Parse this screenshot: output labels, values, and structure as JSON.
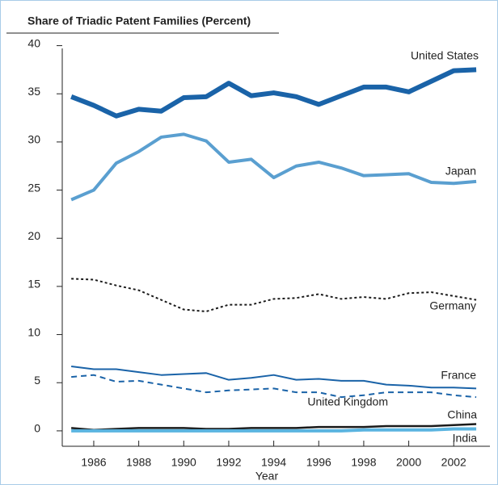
{
  "chart_data": {
    "type": "line",
    "title": "Share of Triadic Patent Families (Percent)",
    "x_label": "Year",
    "x": [
      1985,
      1986,
      1987,
      1988,
      1989,
      1990,
      1991,
      1992,
      1993,
      1994,
      1995,
      1996,
      1997,
      1998,
      1999,
      2000,
      2001,
      2002,
      2003
    ],
    "xlim": [
      1984.6,
      2003.5
    ],
    "xticks": [
      1986,
      1988,
      1990,
      1992,
      1994,
      1996,
      1998,
      2000,
      2002
    ],
    "ylim": [
      -1.6,
      40.3
    ],
    "yticks": [
      0,
      5,
      10,
      15,
      20,
      25,
      30,
      35,
      40
    ],
    "grid": false,
    "series": [
      {
        "name": "United States",
        "color": "#1a63a8",
        "values": [
          34.7,
          33.8,
          32.7,
          33.4,
          33.2,
          34.6,
          34.7,
          36.1,
          34.8,
          35.1,
          34.7,
          33.9,
          34.8,
          35.7,
          35.7,
          35.2,
          36.3,
          37.4,
          37.5
        ]
      },
      {
        "name": "Japan",
        "color": "#5a9fd0",
        "values": [
          24.0,
          25.0,
          27.8,
          29.0,
          30.5,
          30.8,
          30.1,
          27.9,
          28.2,
          26.3,
          27.5,
          27.9,
          27.3,
          26.5,
          26.6,
          26.7,
          25.8,
          25.7,
          25.9
        ]
      },
      {
        "name": "Germany",
        "color": "#1a1a1a",
        "values": [
          15.8,
          15.7,
          15.1,
          14.6,
          13.6,
          12.6,
          12.4,
          13.1,
          13.1,
          13.7,
          13.8,
          14.2,
          13.7,
          13.9,
          13.7,
          14.3,
          14.4,
          14.0,
          13.6
        ]
      },
      {
        "name": "France",
        "color": "#1a63a8",
        "values": [
          6.7,
          6.4,
          6.4,
          6.1,
          5.8,
          5.9,
          6.0,
          5.3,
          5.5,
          5.8,
          5.3,
          5.4,
          5.2,
          5.2,
          4.8,
          4.7,
          4.5,
          4.5,
          4.4
        ]
      },
      {
        "name": "United Kingdom",
        "color": "#1a63a8",
        "values": [
          5.6,
          5.8,
          5.1,
          5.2,
          4.8,
          4.4,
          4.0,
          4.2,
          4.3,
          4.4,
          4.0,
          4.0,
          3.5,
          3.7,
          4.0,
          4.0,
          4.0,
          3.7,
          3.5
        ]
      },
      {
        "name": "China",
        "color": "#1a1a1a",
        "values": [
          0.3,
          0.1,
          0.2,
          0.3,
          0.3,
          0.3,
          0.2,
          0.2,
          0.3,
          0.3,
          0.3,
          0.4,
          0.4,
          0.4,
          0.5,
          0.5,
          0.5,
          0.6,
          0.7
        ]
      },
      {
        "name": "India",
        "color": "#5ab4e0",
        "values": [
          0,
          0,
          0,
          0,
          0,
          0,
          0,
          0,
          0,
          0,
          0,
          0,
          0,
          0.1,
          0.1,
          0.1,
          0.1,
          0.2,
          0.2
        ]
      }
    ]
  }
}
